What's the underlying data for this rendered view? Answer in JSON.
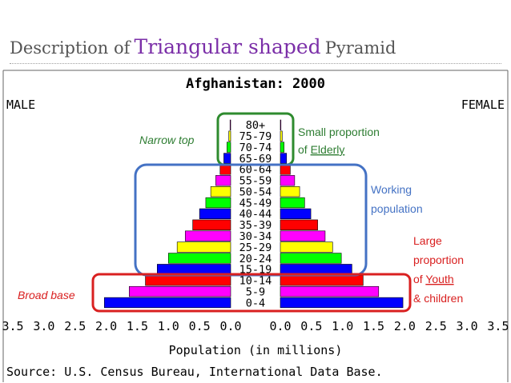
{
  "slide": {
    "title_prefix": "Description of",
    "title_highlight": "Triangular shaped",
    "title_suffix": "Pyramid"
  },
  "chart_data": {
    "type": "bar",
    "orientation": "horizontal",
    "subtype": "population-pyramid",
    "title": "Afghanistan: 2000",
    "xlabel": "Population (in millions)",
    "source": "Source: U.S. Census Bureau, International Data Base.",
    "male_label": "MALE",
    "female_label": "FEMALE",
    "xlim": [
      0,
      3.5
    ],
    "x_ticks_left": [
      "3.5",
      "3.0",
      "2.5",
      "2.0",
      "1.5",
      "1.0",
      "0.5",
      "0.0"
    ],
    "x_ticks_right": [
      "0.0",
      "0.5",
      "1.0",
      "1.5",
      "2.0",
      "2.5",
      "3.0",
      "3.5"
    ],
    "categories": [
      "80+",
      "75-79",
      "70-74",
      "65-69",
      "60-64",
      "55-59",
      "50-54",
      "45-49",
      "40-44",
      "35-39",
      "30-34",
      "25-29",
      "20-24",
      "15-19",
      "10-14",
      "5-9",
      "0-4"
    ],
    "series": [
      {
        "name": "MALE",
        "values": [
          0.01,
          0.03,
          0.06,
          0.11,
          0.17,
          0.24,
          0.32,
          0.4,
          0.5,
          0.61,
          0.73,
          0.86,
          1.0,
          1.18,
          1.37,
          1.63,
          2.03
        ]
      },
      {
        "name": "FEMALE",
        "values": [
          0.01,
          0.03,
          0.06,
          0.1,
          0.16,
          0.23,
          0.31,
          0.39,
          0.49,
          0.6,
          0.72,
          0.84,
          0.98,
          1.15,
          1.33,
          1.58,
          1.97
        ]
      }
    ],
    "bar_colors": [
      "#ff00ff",
      "#ffff00",
      "#00ff00",
      "#0000ff",
      "#ff0000",
      "#ff00ff",
      "#ffff00",
      "#00ff00",
      "#0000ff",
      "#ff0000",
      "#ff00ff",
      "#ffff00",
      "#00ff00",
      "#0000ff",
      "#ff0000",
      "#ff00ff",
      "#0000ff"
    ],
    "annotations": [
      {
        "text_lines": [
          "Narrow top"
        ],
        "color": "#2e7d32",
        "box_color": "#2e8b2e"
      },
      {
        "text_lines": [
          "Small proportion",
          "of Elderly"
        ],
        "underline": "Elderly",
        "color": "#2e7d32"
      },
      {
        "text_lines": [
          "Working",
          "population"
        ],
        "color": "#4472c4",
        "box_color": "#4472c4"
      },
      {
        "text_lines": [
          "Large",
          "proportion",
          "of Youth",
          "& children"
        ],
        "underline": "Youth",
        "color": "#d92020"
      },
      {
        "text_lines": [
          "Broad base"
        ],
        "color": "#d92020",
        "box_color": "#d92020"
      }
    ]
  }
}
